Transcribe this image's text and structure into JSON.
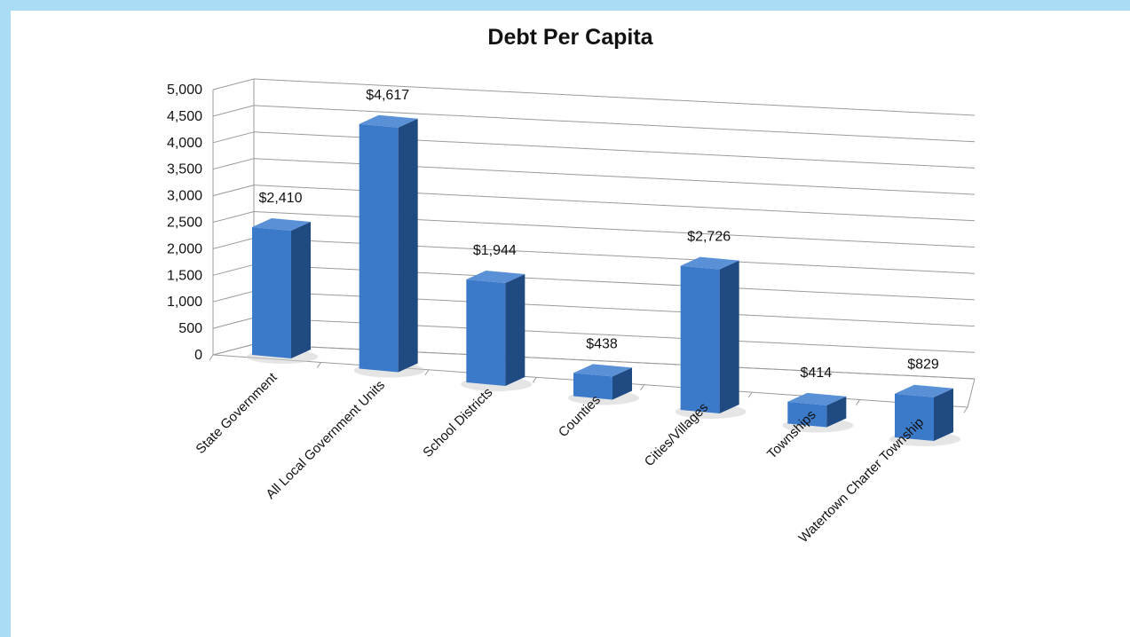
{
  "chart_data": {
    "type": "bar",
    "title": "Debt Per Capita",
    "xlabel": "",
    "ylabel": "",
    "ylim": [
      0,
      5000
    ],
    "yticks": [
      "0",
      "500",
      "1,000",
      "1,500",
      "2,000",
      "2,500",
      "3,000",
      "3,500",
      "4,000",
      "4,500",
      "5,000"
    ],
    "categories": [
      "State Government",
      "All Local Government Units",
      "School Districts",
      "Counties",
      "Cities/Villages",
      "Townships",
      "Watertown Charter Township"
    ],
    "values": [
      2410,
      4617,
      1944,
      438,
      2726,
      414,
      829
    ],
    "data_labels": [
      "$2,410",
      "$4,617",
      "$1,944",
      "$438",
      "$2,726",
      "$414",
      "$829"
    ],
    "grid": true,
    "legend": "none",
    "style": "3d-column",
    "colors": {
      "bar_front": "#3b79c9",
      "bar_side": "#1f4a82",
      "bar_top": "#5a90d6",
      "frame_background": "#a9dcf5"
    }
  }
}
